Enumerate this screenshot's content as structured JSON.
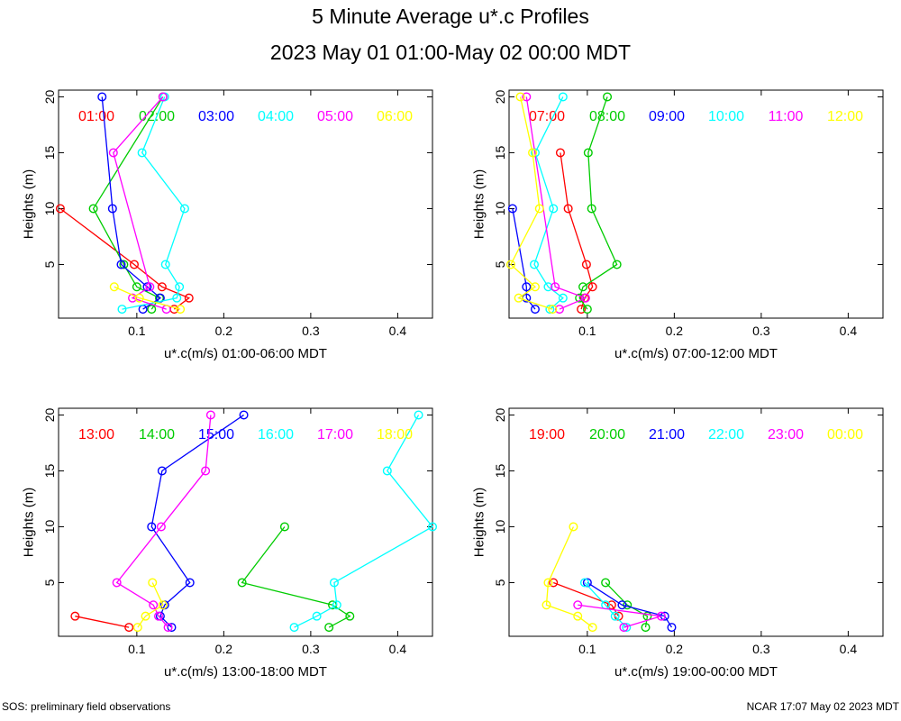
{
  "title": "5 Minute Average u*.c Profiles",
  "subtitle": "2023 May 01 01:00-May 02 00:00 MDT",
  "footer_left": "SOS: preliminary field observations",
  "footer_right": "NCAR 17:07 May 02 2023 MDT",
  "colors": [
    "#ff0000",
    "#00cc00",
    "#0000ff",
    "#00ffff",
    "#ff00ff",
    "#ffff00"
  ],
  "chart_data": [
    {
      "type": "line",
      "xlabel": "u*.c(m/s) 01:00-06:00 MDT",
      "ylabel": "Heights (m)",
      "xlim": [
        0.01,
        0.44
      ],
      "ylim": [
        0.2,
        20.6
      ],
      "xticks": [
        "0.1",
        "0.2",
        "0.3",
        "0.4"
      ],
      "yticks": [
        "5",
        "10",
        "15",
        "20"
      ],
      "series": [
        {
          "name": "01:00",
          "x": [
            0.143,
            0.16,
            0.129,
            0.097,
            0.012
          ],
          "y": [
            1,
            2,
            3,
            5,
            10
          ]
        },
        {
          "name": "02:00",
          "x": [
            0.117,
            0.126,
            0.1,
            0.085,
            0.05,
            0.13
          ],
          "y": [
            1,
            2,
            3,
            5,
            10,
            20
          ]
        },
        {
          "name": "03:00",
          "x": [
            0.107,
            0.127,
            0.112,
            0.082,
            0.072,
            0.06
          ],
          "y": [
            1,
            2,
            3,
            5,
            10,
            20
          ]
        },
        {
          "name": "04:00",
          "x": [
            0.083,
            0.146,
            0.149,
            0.133,
            0.155,
            0.106,
            0.132
          ],
          "y": [
            1,
            2,
            3,
            5,
            10,
            15,
            20
          ]
        },
        {
          "name": "05:00",
          "x": [
            0.134,
            0.095,
            0.115,
            0.073,
            0.13
          ],
          "y": [
            1,
            2,
            3,
            15,
            20
          ]
        },
        {
          "name": "06:00",
          "x": [
            0.15,
            0.103,
            0.074
          ],
          "y": [
            1,
            2,
            3
          ]
        }
      ]
    },
    {
      "type": "line",
      "xlabel": "u*.c(m/s) 07:00-12:00 MDT",
      "ylabel": "Heights (m)",
      "xlim": [
        0.01,
        0.44
      ],
      "ylim": [
        0.2,
        20.6
      ],
      "xticks": [
        "0.1",
        "0.2",
        "0.3",
        "0.4"
      ],
      "yticks": [
        "5",
        "10",
        "15",
        "20"
      ],
      "series": [
        {
          "name": "07:00",
          "x": [
            0.093,
            0.097,
            0.106,
            0.099,
            0.078,
            0.069
          ],
          "y": [
            1,
            2,
            3,
            5,
            10,
            15
          ]
        },
        {
          "name": "08:00",
          "x": [
            0.1,
            0.091,
            0.095,
            0.134,
            0.105,
            0.101,
            0.123
          ],
          "y": [
            1,
            2,
            3,
            5,
            10,
            15,
            20
          ]
        },
        {
          "name": "09:00",
          "x": [
            0.04,
            0.03,
            0.03,
            0.014
          ],
          "y": [
            1,
            2,
            3,
            10
          ]
        },
        {
          "name": "10:00",
          "x": [
            0.057,
            0.072,
            0.055,
            0.039,
            0.061,
            0.04,
            0.072
          ],
          "y": [
            1,
            2,
            3,
            5,
            10,
            15,
            20
          ]
        },
        {
          "name": "11:00",
          "x": [
            0.068,
            0.098,
            0.063,
            0.03
          ],
          "y": [
            1,
            2,
            3,
            20
          ]
        },
        {
          "name": "12:00",
          "x": [
            0.06,
            0.021,
            0.04,
            0.012,
            0.045,
            0.037,
            0.023
          ],
          "y": [
            1,
            2,
            3,
            5,
            10,
            15,
            20
          ]
        }
      ]
    },
    {
      "type": "line",
      "xlabel": "u*.c(m/s) 13:00-18:00 MDT",
      "ylabel": "Heights (m)",
      "xlim": [
        0.01,
        0.44
      ],
      "ylim": [
        0.2,
        20.6
      ],
      "xticks": [
        "0.1",
        "0.2",
        "0.3",
        "0.4"
      ],
      "yticks": [
        "5",
        "10",
        "15",
        "20"
      ],
      "series": [
        {
          "name": "13:00",
          "x": [
            0.091,
            0.029
          ],
          "y": [
            1,
            2
          ]
        },
        {
          "name": "14:00",
          "x": [
            0.321,
            0.345,
            0.325,
            0.221,
            0.27
          ],
          "y": [
            1,
            2,
            3,
            5,
            10
          ]
        },
        {
          "name": "15:00",
          "x": [
            0.14,
            0.127,
            0.132,
            0.161,
            0.117,
            0.129,
            0.223
          ],
          "y": [
            1,
            2,
            3,
            5,
            10,
            15,
            20
          ]
        },
        {
          "name": "16:00",
          "x": [
            0.281,
            0.307,
            0.33,
            0.327,
            0.44,
            0.388,
            0.424
          ],
          "y": [
            1,
            2,
            3,
            5,
            10,
            15,
            20
          ]
        },
        {
          "name": "17:00",
          "x": [
            0.136,
            0.125,
            0.119,
            0.077,
            0.128,
            0.179,
            0.185
          ],
          "y": [
            1,
            2,
            3,
            5,
            10,
            15,
            20
          ]
        },
        {
          "name": "18:00",
          "x": [
            0.101,
            0.11,
            0.13,
            0.118
          ],
          "y": [
            1,
            2,
            3,
            5
          ]
        }
      ]
    },
    {
      "type": "line",
      "xlabel": "u*.c(m/s) 19:00-00:00 MDT",
      "ylabel": "Heights (m)",
      "xlim": [
        0.01,
        0.44
      ],
      "ylim": [
        0.2,
        20.6
      ],
      "xticks": [
        "0.1",
        "0.2",
        "0.3",
        "0.4"
      ],
      "yticks": [
        "5",
        "10",
        "15",
        "20"
      ],
      "series": [
        {
          "name": "19:00",
          "x": [
            0.136,
            0.128,
            0.061
          ],
          "y": [
            2,
            3,
            5
          ]
        },
        {
          "name": "20:00",
          "x": [
            0.167,
            0.169,
            0.146,
            0.121
          ],
          "y": [
            1,
            2,
            3,
            5
          ]
        },
        {
          "name": "21:00",
          "x": [
            0.197,
            0.189,
            0.14,
            0.1
          ],
          "y": [
            1,
            2,
            3,
            5
          ]
        },
        {
          "name": "22:00",
          "x": [
            0.145,
            0.132,
            0.121,
            0.097
          ],
          "y": [
            1,
            2,
            3,
            5
          ]
        },
        {
          "name": "23:00",
          "x": [
            0.142,
            0.185,
            0.089
          ],
          "y": [
            1,
            2,
            3
          ]
        },
        {
          "name": "00:00",
          "x": [
            0.106,
            0.089,
            0.053,
            0.055,
            0.084
          ],
          "y": [
            1,
            2,
            3,
            5,
            10
          ]
        }
      ]
    }
  ]
}
